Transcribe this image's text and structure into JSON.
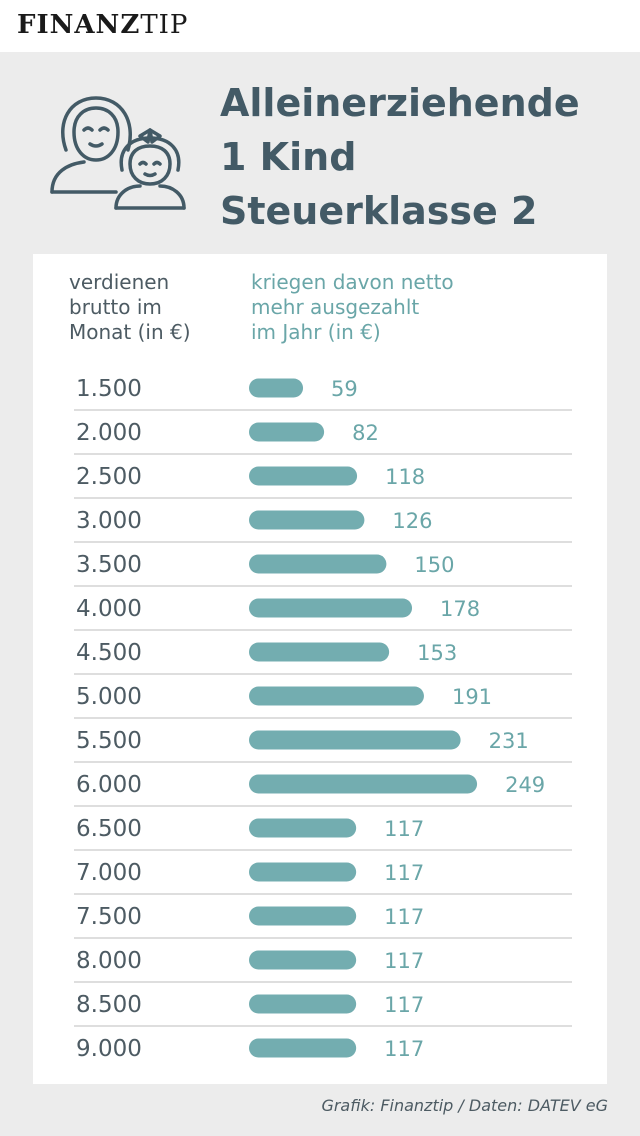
{
  "brand": {
    "part1": "FINANZ",
    "part2": "TIP"
  },
  "title_lines": [
    "Alleinerziehende",
    "1 Kind",
    "Steuerklasse 2"
  ],
  "column_headers": {
    "left": [
      "verdienen",
      "brutto im",
      "Monat (in €)"
    ],
    "right": [
      "kriegen davon netto",
      "mehr ausgezahlt",
      "im Jahr (in €)"
    ]
  },
  "chart_data": {
    "type": "bar",
    "orientation": "horizontal",
    "categories": [
      "1.500",
      "2.000",
      "2.500",
      "3.000",
      "3.500",
      "4.000",
      "4.500",
      "5.000",
      "5.500",
      "6.000",
      "6.500",
      "7.000",
      "7.500",
      "8.000",
      "8.500",
      "9.000"
    ],
    "values": [
      59,
      82,
      118,
      126,
      150,
      178,
      153,
      191,
      231,
      249,
      117,
      117,
      117,
      117,
      117,
      117
    ],
    "title": "Alleinerziehende 1 Kind Steuerklasse 2",
    "xlabel": "kriegen davon netto mehr ausgezahlt im Jahr (in €)",
    "ylabel": "verdienen brutto im Monat (in €)",
    "grid": false,
    "legend": "none"
  },
  "footer": "Grafik: Finanztip / Daten: DATEV eG",
  "colors": {
    "bar": "#73adb0",
    "value_label": "#6aa6a8",
    "title": "#435a66",
    "text": "#4d5b63",
    "divider": "#bcbcbc"
  },
  "icons": {
    "illustration": "mother-child-icon"
  }
}
